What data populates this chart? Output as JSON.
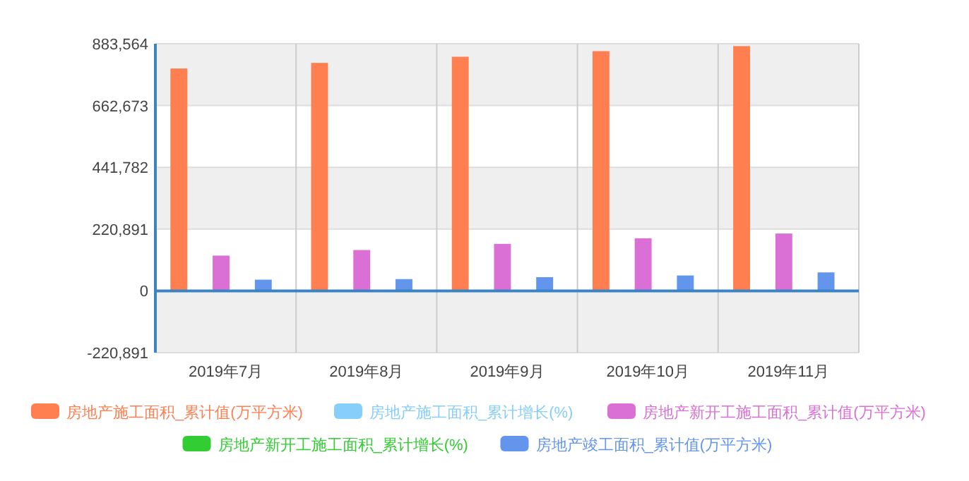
{
  "chart_data": {
    "type": "bar",
    "categories": [
      "2019年7月",
      "2019年8月",
      "2019年9月",
      "2019年10月",
      "2019年11月"
    ],
    "series": [
      {
        "name": "房地产施工面积_累计值(万平方米)",
        "color": "#ff7f50",
        "values": [
          795000,
          815000,
          837000,
          857000,
          875000
        ]
      },
      {
        "name": "房地产施工面积_累计增长(%)",
        "color": "#87cefa",
        "values": [
          null,
          null,
          null,
          null,
          null
        ]
      },
      {
        "name": "房地产新开工施工面积_累计值(万平方米)",
        "color": "#da70d6",
        "values": [
          126000,
          146000,
          168000,
          188000,
          205000
        ]
      },
      {
        "name": "房地产新开工施工面积_累计增长(%)",
        "color": "#32cd32",
        "values": [
          null,
          null,
          null,
          null,
          null
        ]
      },
      {
        "name": "房地产竣工面积_累计值(万平方米)",
        "color": "#6495ed",
        "values": [
          40000,
          42000,
          49000,
          55000,
          66000
        ]
      }
    ],
    "ylim": [
      -220891,
      883564
    ],
    "yticks": [
      {
        "value": -220891,
        "label": "-220,891"
      },
      0,
      {
        "value": 220891,
        "label": "220,891"
      },
      {
        "value": 441782,
        "label": "441,782"
      },
      {
        "value": 662673,
        "label": "662,673"
      },
      {
        "value": 883564,
        "label": "883,564"
      }
    ],
    "ref_lines": [
      {
        "axis": "y",
        "value": 0,
        "color": "#3a84c4"
      }
    ],
    "grid": true,
    "legend": "bottom"
  }
}
